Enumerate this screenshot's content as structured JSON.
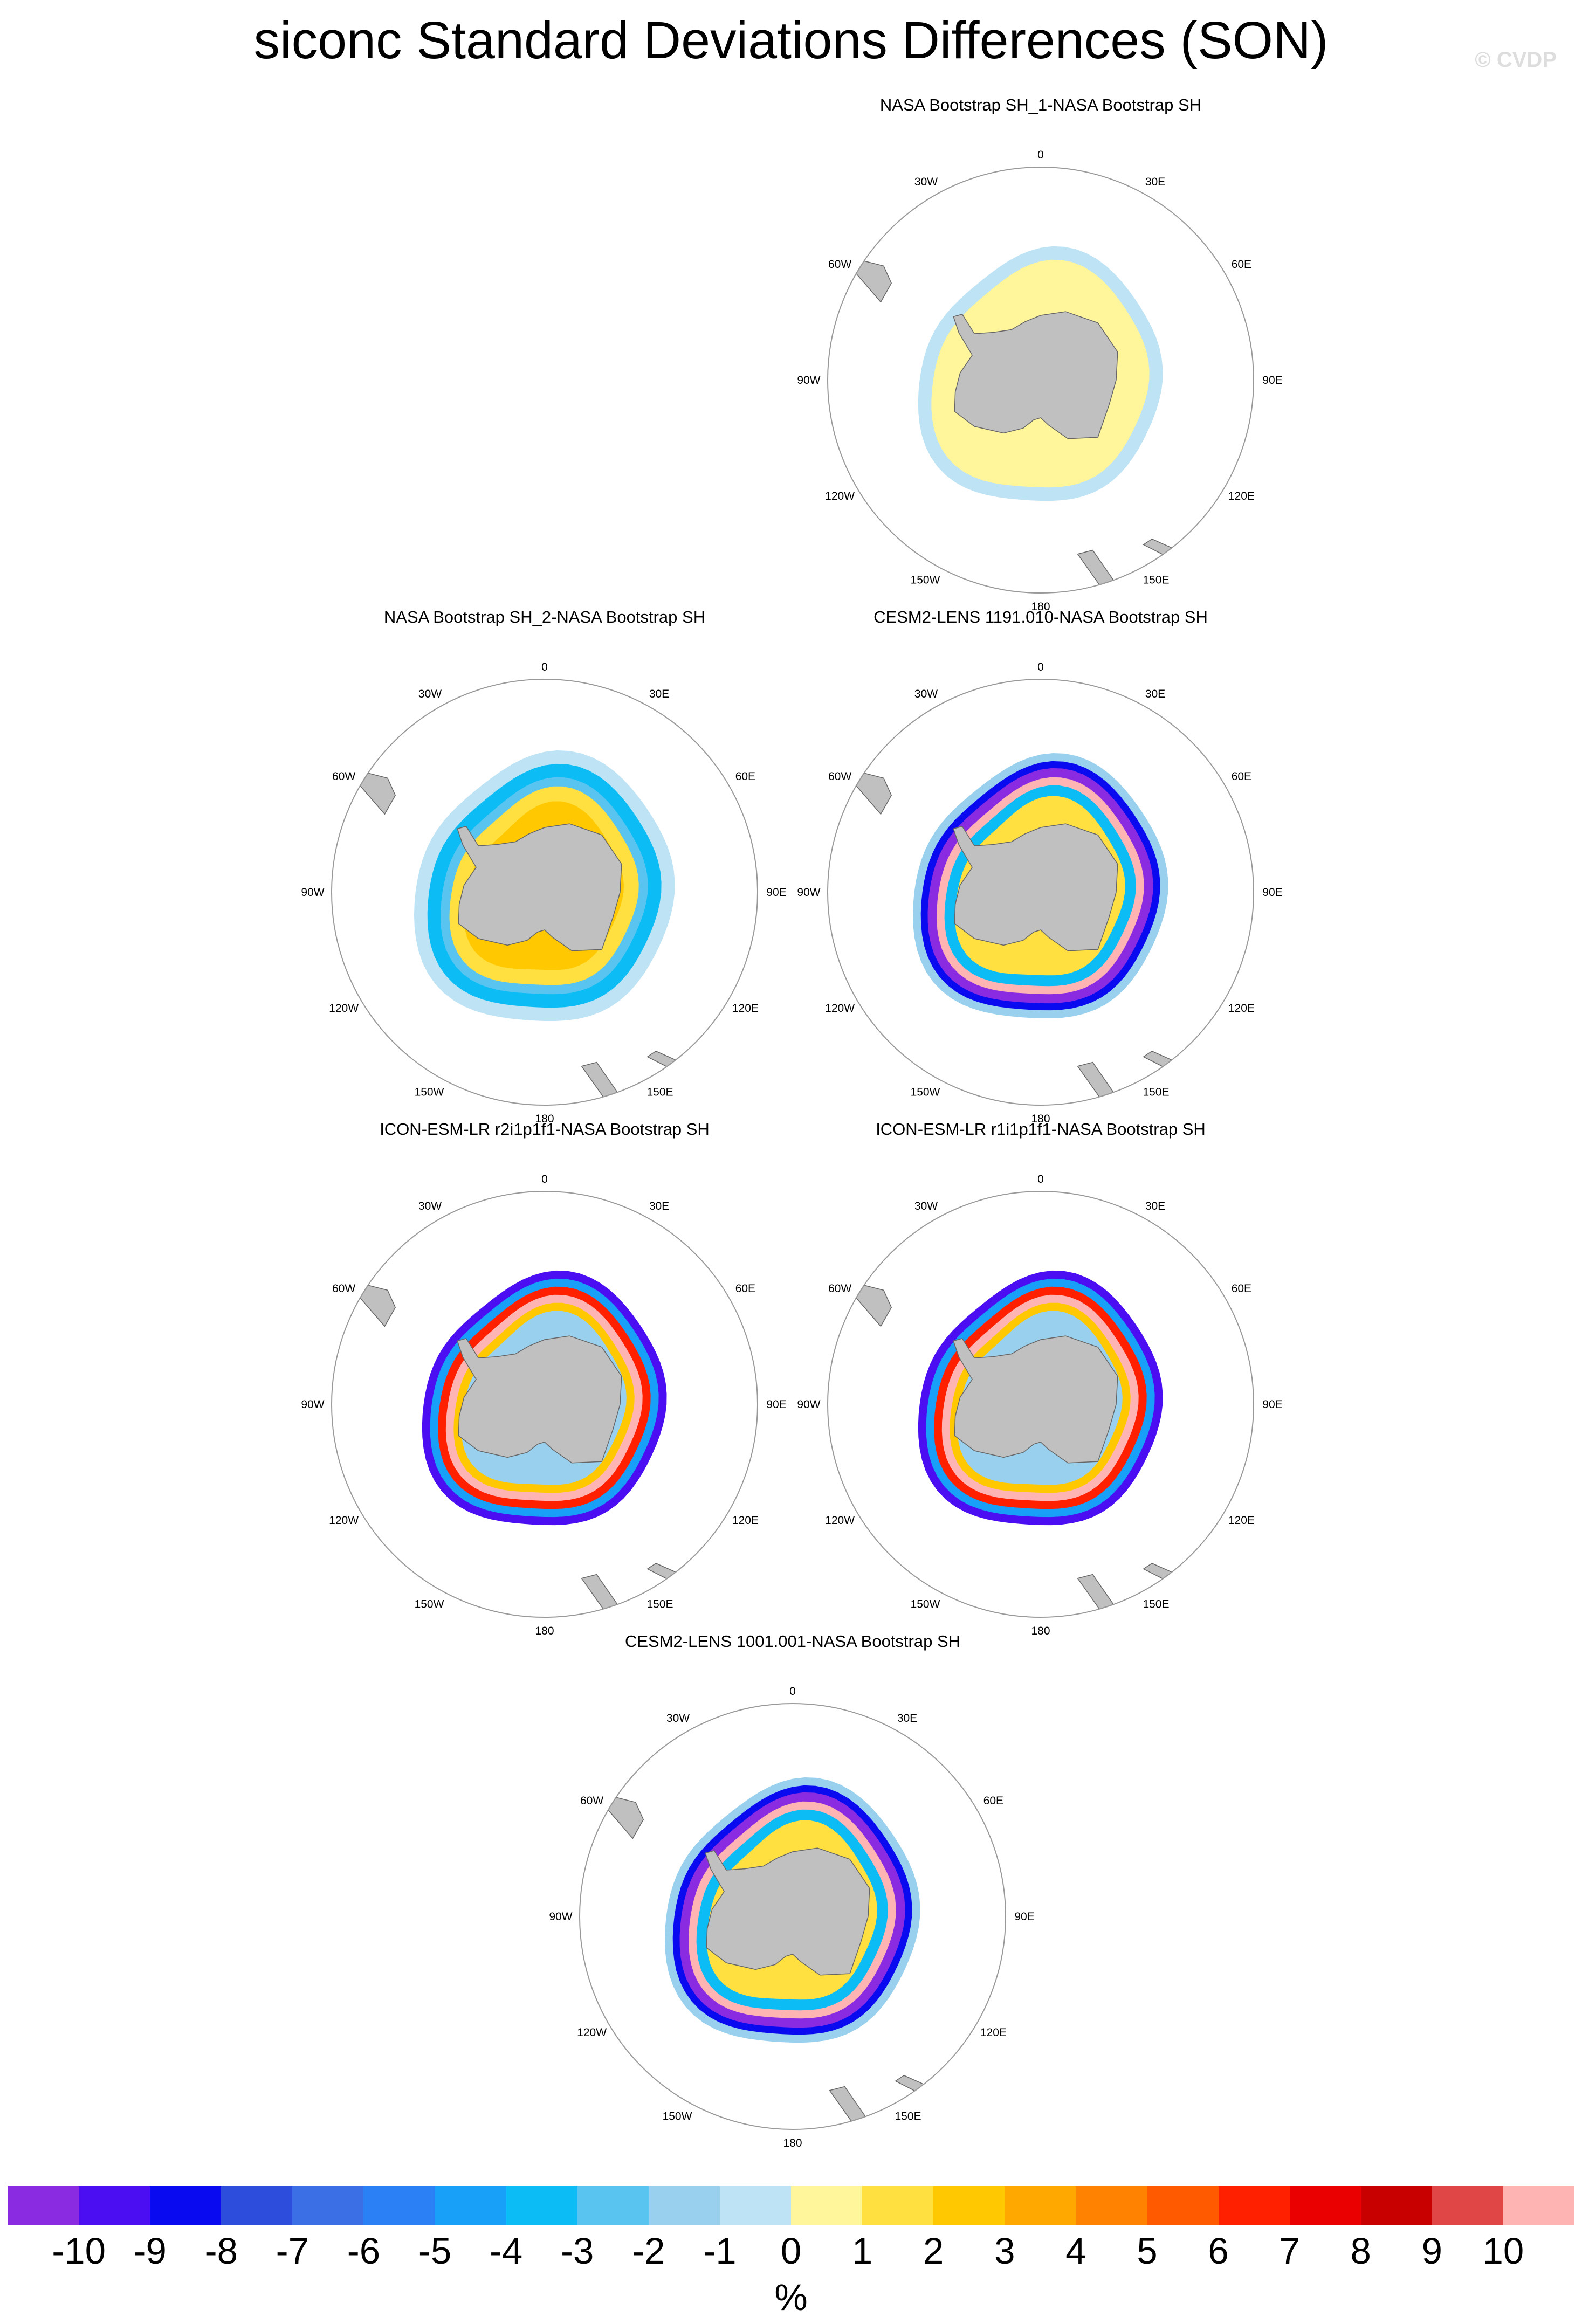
{
  "title": "siconc Standard Deviations Differences (SON)",
  "watermark": "© CVDP",
  "map_labels": {
    "top": "0",
    "bottom": "180",
    "left": "90W",
    "right": "90E",
    "ul1": "30W",
    "ul2": "60W",
    "ur1": "30E",
    "ur2": "60E",
    "ll1": "120W",
    "ll2": "150W",
    "lr1": "120E",
    "lr2": "150E"
  },
  "panels": [
    {
      "title": "NASA Bootstrap SH_1-NASA Bootstrap SH",
      "pattern": "obs1"
    },
    {
      "title": "NASA Bootstrap SH_2-NASA Bootstrap SH",
      "pattern": "obs2"
    },
    {
      "title": "CESM2-LENS 1191.010-NASA Bootstrap SH",
      "pattern": "cesm"
    },
    {
      "title": "ICON-ESM-LR r2i1p1f1-NASA Bootstrap SH",
      "pattern": "icon"
    },
    {
      "title": "ICON-ESM-LR r1i1p1f1-NASA Bootstrap SH",
      "pattern": "icon"
    },
    {
      "title": "CESM2-LENS 1001.001-NASA Bootstrap SH",
      "pattern": "cesm"
    }
  ],
  "colorbar": {
    "colors": [
      "#8a2be2",
      "#4b0df2",
      "#0a0af0",
      "#2d4ddc",
      "#3b6fe6",
      "#2a80f4",
      "#18a0f8",
      "#0cbcf4",
      "#5ac4f0",
      "#98d0ee",
      "#bde3f5",
      "#fff59a",
      "#ffe040",
      "#ffc800",
      "#ffa800",
      "#ff8200",
      "#ff5a00",
      "#ff2000",
      "#ea0000",
      "#c80000",
      "#e04646",
      "#ffb4b4"
    ],
    "tick_labels": [
      "-10",
      "-9",
      "-8",
      "-7",
      "-6",
      "-5",
      "-4",
      "-3",
      "-2",
      "-1",
      "0",
      "1",
      "2",
      "3",
      "4",
      "5",
      "6",
      "7",
      "8",
      "9",
      "10"
    ],
    "unit": "%"
  }
}
